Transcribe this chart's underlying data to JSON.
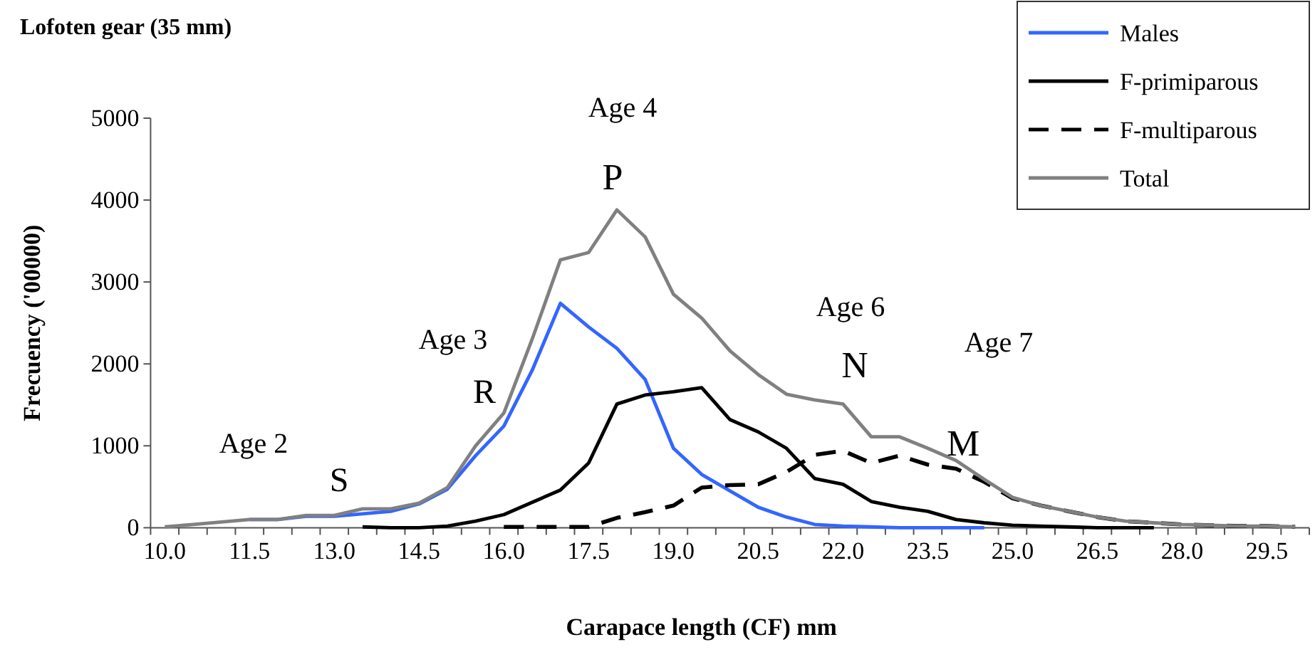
{
  "chart_data": {
    "type": "line",
    "title": "Lofoten gear (35 mm)",
    "xlabel": "Carapace length (CF) mm",
    "ylabel": "Frecuency ('00000)",
    "categories": [
      "10.0",
      null,
      null,
      "11.5",
      null,
      null,
      "13.0",
      null,
      null,
      "14.5",
      null,
      null,
      "16.0",
      null,
      null,
      "17.5",
      null,
      null,
      "19.0",
      null,
      null,
      "20.5",
      null,
      null,
      "22.0",
      null,
      null,
      "23.5",
      null,
      null,
      "25.0",
      null,
      null,
      "26.5",
      null,
      null,
      "28.0",
      null,
      null,
      "29.5",
      null
    ],
    "ylim": [
      0,
      5000
    ],
    "yticks": [
      0,
      1000,
      2000,
      3000,
      4000,
      5000
    ],
    "grid": false,
    "legend": "top right",
    "series": [
      {
        "name": "Males",
        "color": "#3366ff",
        "line_style": "solid",
        "values": [
          null,
          null,
          null,
          100,
          100,
          140,
          140,
          170,
          200,
          290,
          470,
          880,
          1240,
          1920,
          2740,
          2450,
          2190,
          1810,
          970,
          650,
          450,
          250,
          130,
          40,
          20,
          10,
          0,
          0,
          0,
          0,
          null,
          null,
          null,
          null,
          null,
          null,
          null,
          null,
          null,
          null,
          null
        ]
      },
      {
        "name": "F-primiparous",
        "color": "#000000",
        "line_style": "solid",
        "values": [
          null,
          null,
          null,
          null,
          null,
          null,
          null,
          10,
          0,
          0,
          20,
          80,
          160,
          310,
          460,
          790,
          1510,
          1620,
          1660,
          1710,
          1320,
          1170,
          970,
          600,
          530,
          320,
          250,
          200,
          100,
          60,
          30,
          20,
          10,
          0,
          0,
          0,
          null,
          null,
          null,
          null,
          null
        ]
      },
      {
        "name": "F-multiparous",
        "color": "#000000",
        "line_style": "dashed",
        "values": [
          null,
          null,
          null,
          null,
          null,
          null,
          null,
          null,
          null,
          null,
          null,
          null,
          10,
          10,
          10,
          10,
          120,
          190,
          270,
          490,
          520,
          530,
          680,
          890,
          940,
          790,
          880,
          770,
          720,
          560,
          360,
          270,
          200,
          130,
          80,
          60,
          40,
          30,
          20,
          20,
          10
        ]
      },
      {
        "name": "Total",
        "color": "#808080",
        "line_style": "solid",
        "values": [
          10,
          40,
          70,
          100,
          100,
          150,
          150,
          230,
          230,
          300,
          490,
          1000,
          1400,
          2300,
          3270,
          3360,
          3880,
          3550,
          2850,
          2560,
          2160,
          1870,
          1630,
          1560,
          1510,
          1110,
          1110,
          970,
          820,
          590,
          370,
          270,
          200,
          130,
          80,
          60,
          40,
          30,
          20,
          20,
          10
        ]
      }
    ],
    "annotations": [
      "Age 2",
      "S",
      "Age 3",
      "R",
      "Age 4",
      "P",
      "Age 6",
      "N",
      "Age 7",
      "M"
    ]
  }
}
